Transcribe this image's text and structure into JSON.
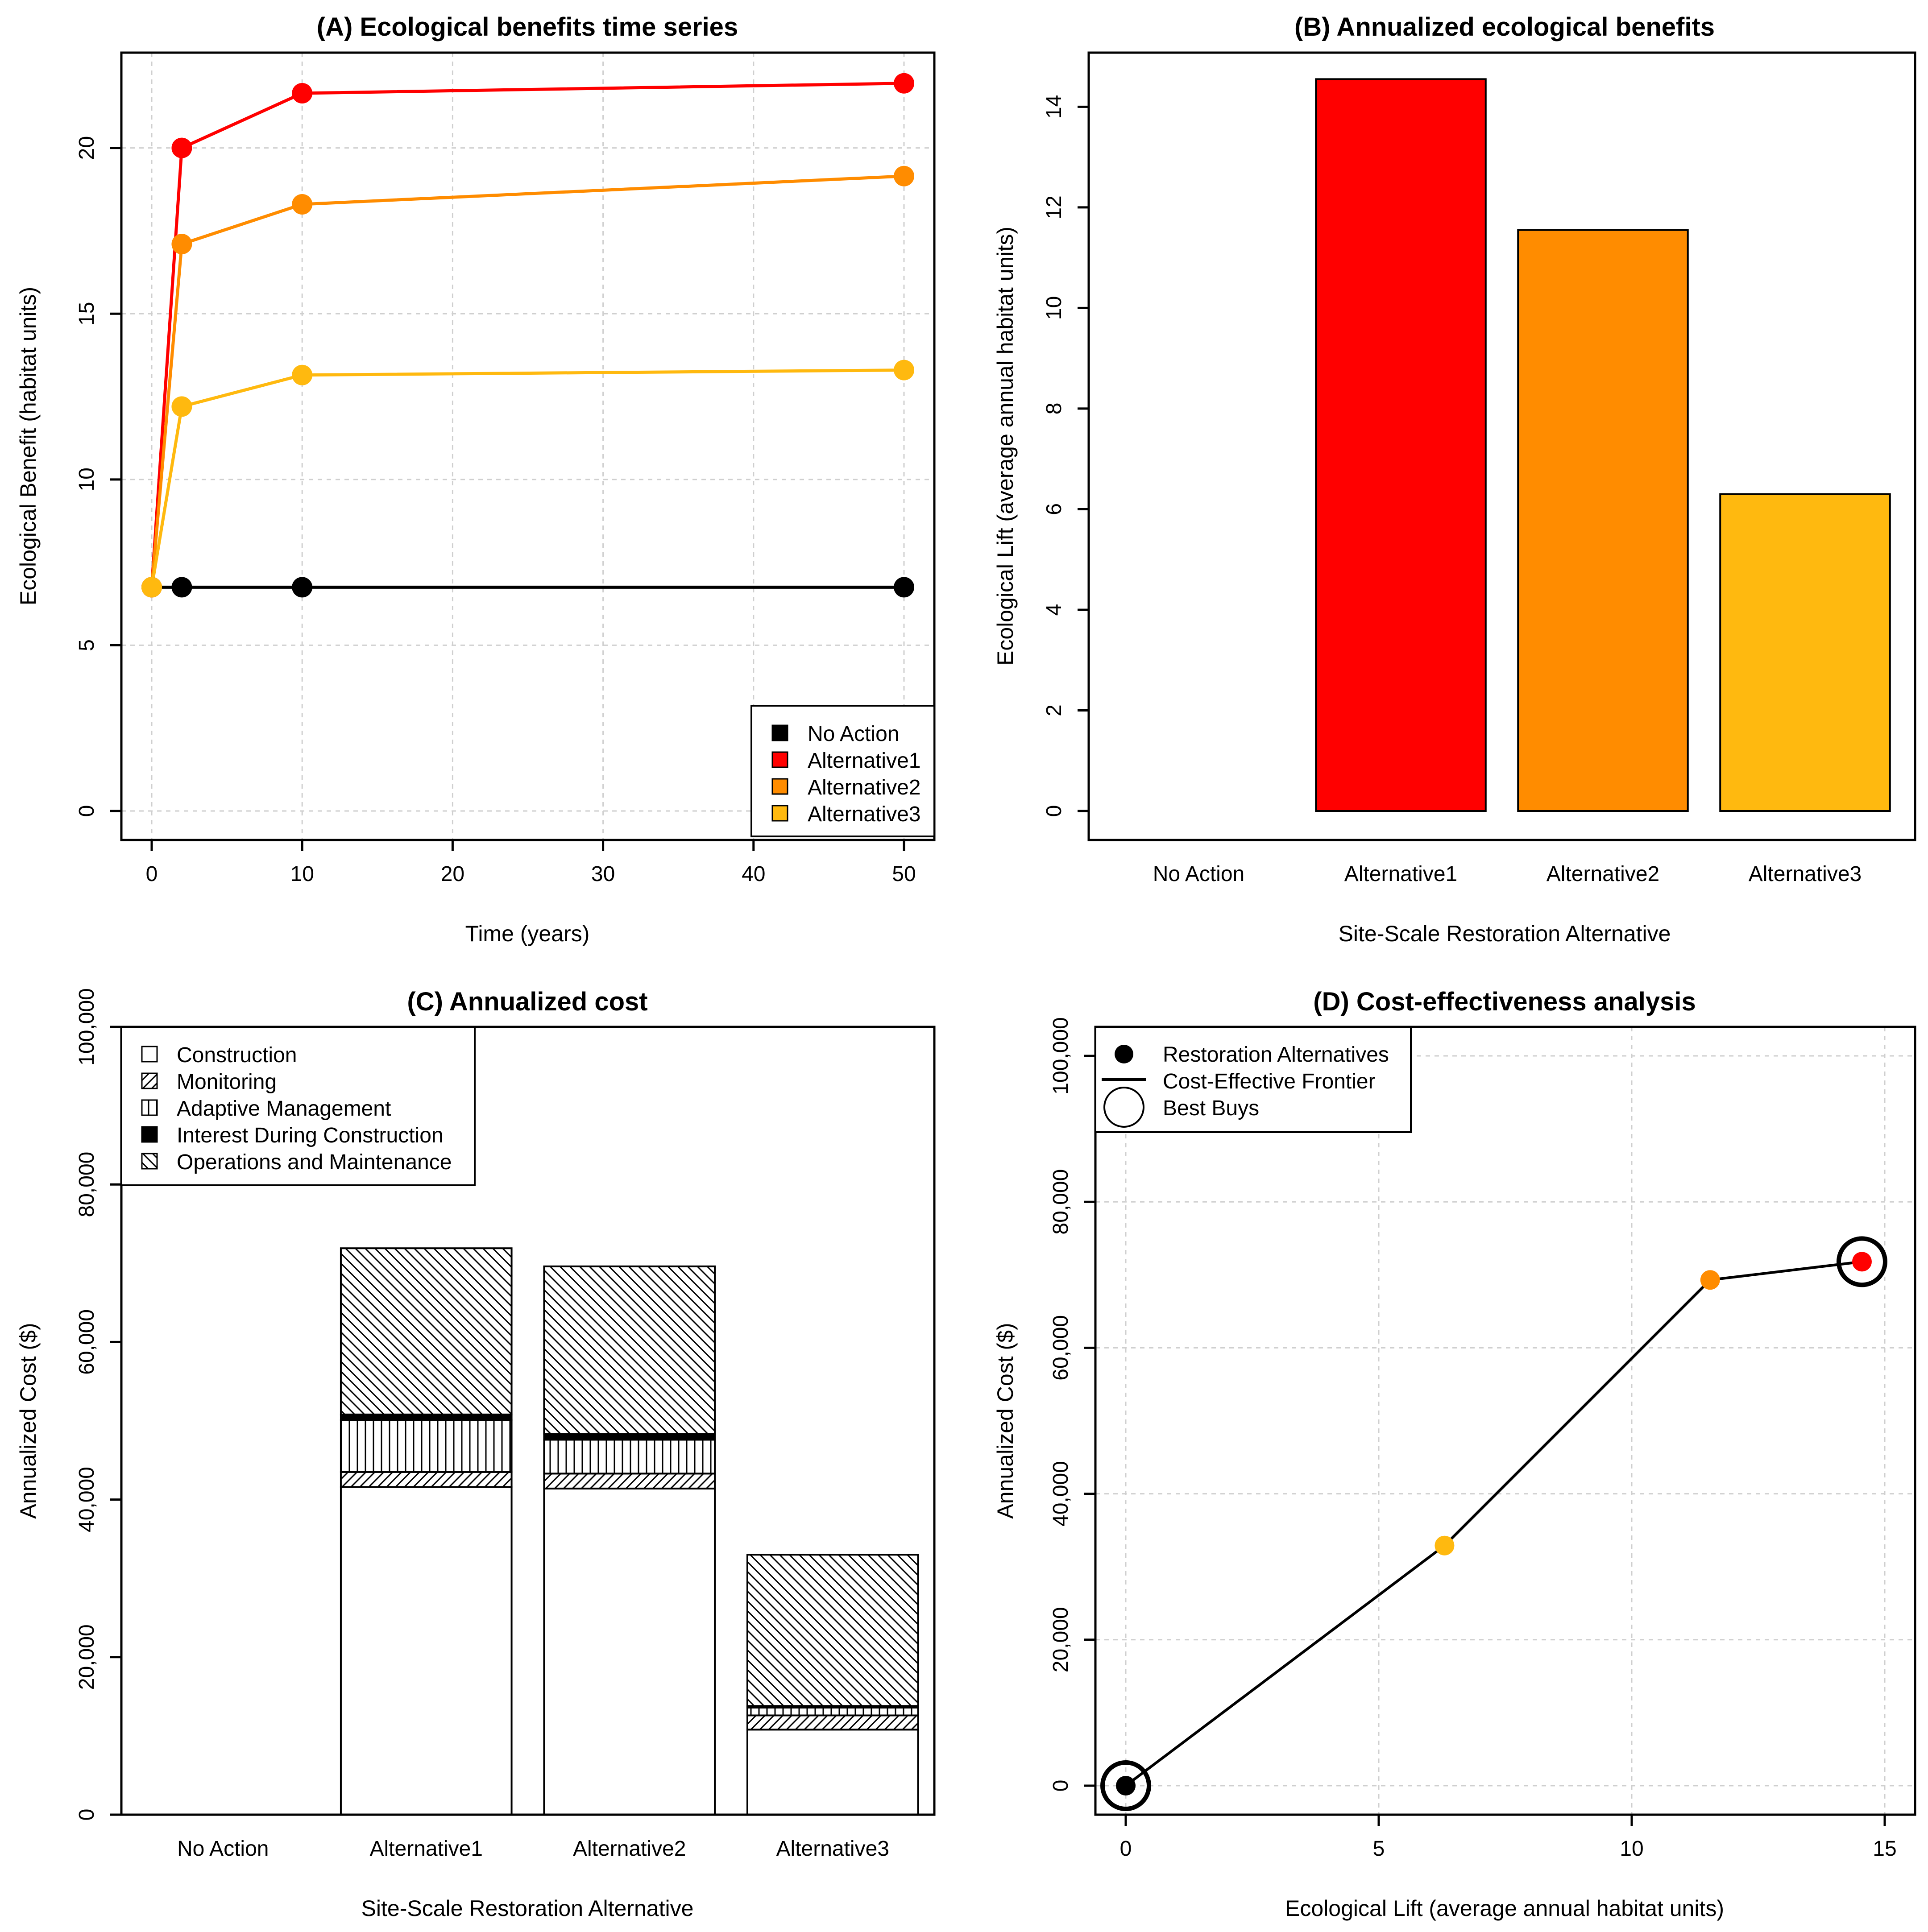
{
  "colors": {
    "no_action": "#000000",
    "alternative1": "#ff0000",
    "alternative2": "#ff8c00",
    "alternative3": "#ffb90f"
  },
  "chart_data": [
    {
      "id": "A",
      "type": "line",
      "title": "(A) Ecological benefits time series",
      "xlabel": "Time (years)",
      "ylabel": "Ecological Benefit (habitat units)",
      "xlim": [
        0,
        50
      ],
      "ylim": [
        0,
        22
      ],
      "xticks": [
        0,
        10,
        20,
        30,
        40,
        50
      ],
      "yticks": [
        0,
        5,
        10,
        15,
        20
      ],
      "grid": true,
      "legend_position": "bottom-right",
      "series": [
        {
          "name": "No Action",
          "color": "#000000",
          "x": [
            0,
            2,
            10,
            50
          ],
          "values": [
            6.75,
            6.75,
            6.75,
            6.75
          ]
        },
        {
          "name": "Alternative1",
          "color": "#ff0000",
          "x": [
            0,
            2,
            10,
            50
          ],
          "values": [
            6.75,
            20.0,
            21.65,
            21.95
          ]
        },
        {
          "name": "Alternative2",
          "color": "#ff8c00",
          "x": [
            0,
            2,
            10,
            50
          ],
          "values": [
            6.75,
            17.1,
            18.3,
            19.15
          ]
        },
        {
          "name": "Alternative3",
          "color": "#ffb90f",
          "x": [
            0,
            2,
            10,
            50
          ],
          "values": [
            6.75,
            12.2,
            13.15,
            13.3
          ]
        }
      ]
    },
    {
      "id": "B",
      "type": "bar",
      "title": "(B) Annualized ecological benefits",
      "xlabel": "Site-Scale Restoration Alternative",
      "ylabel": "Ecological Lift (average annual habitat units)",
      "ylim": [
        0,
        14.5
      ],
      "yticks": [
        0,
        2,
        4,
        6,
        8,
        10,
        12,
        14
      ],
      "categories": [
        "No Action",
        "Alternative1",
        "Alternative2",
        "Alternative3"
      ],
      "values": [
        0,
        14.55,
        11.55,
        6.3
      ],
      "colors": [
        "#000000",
        "#ff0000",
        "#ff8c00",
        "#ffb90f"
      ]
    },
    {
      "id": "C",
      "type": "bar",
      "stacked": true,
      "title": "(C) Annualized cost",
      "xlabel": "Site-Scale Restoration Alternative",
      "ylabel": "Annualized Cost ($)",
      "ylim": [
        0,
        100000
      ],
      "yticks": [
        0,
        20000,
        40000,
        60000,
        80000,
        100000
      ],
      "ytick_labels": [
        "0",
        "20,000",
        "40,000",
        "60,000",
        "80,000",
        "100,000"
      ],
      "legend_position": "top-left",
      "categories": [
        "No Action",
        "Alternative1",
        "Alternative2",
        "Alternative3"
      ],
      "series": [
        {
          "name": "Construction",
          "pattern": "blank",
          "values": [
            0,
            41600,
            41400,
            10800
          ]
        },
        {
          "name": "Monitoring",
          "pattern": "diag-right",
          "values": [
            0,
            1900,
            1900,
            1800
          ]
        },
        {
          "name": "Adaptive Management",
          "pattern": "vertical",
          "values": [
            0,
            6600,
            4300,
            1000
          ]
        },
        {
          "name": "Interest During Construction",
          "pattern": "solid",
          "values": [
            0,
            700,
            700,
            200
          ]
        },
        {
          "name": "Operations and Maintenance",
          "pattern": "diag-left",
          "values": [
            0,
            21100,
            21300,
            19200
          ]
        }
      ]
    },
    {
      "id": "D",
      "type": "scatter",
      "title": "(D) Cost-effectiveness analysis",
      "xlabel": "Ecological Lift (average annual habitat units)",
      "ylabel": "Annualized Cost ($)",
      "xlim": [
        0,
        15
      ],
      "ylim": [
        0,
        100000
      ],
      "xticks": [
        0,
        5,
        10,
        15
      ],
      "yticks": [
        0,
        20000,
        40000,
        60000,
        80000,
        100000
      ],
      "ytick_labels": [
        "0",
        "20,000",
        "40,000",
        "60,000",
        "80,000",
        "100,000"
      ],
      "grid": true,
      "legend_position": "top-left",
      "legend": [
        "Restoration Alternatives",
        "Cost-Effective Frontier",
        "Best Buys"
      ],
      "points": [
        {
          "name": "No Action",
          "x": 0,
          "y": 0,
          "color": "#000000",
          "best_buy": true
        },
        {
          "name": "Alternative3",
          "x": 6.3,
          "y": 32900,
          "color": "#ffb90f",
          "best_buy": false
        },
        {
          "name": "Alternative2",
          "x": 11.55,
          "y": 69300,
          "color": "#ff8c00",
          "best_buy": false
        },
        {
          "name": "Alternative1",
          "x": 14.55,
          "y": 71800,
          "color": "#ff0000",
          "best_buy": true
        }
      ],
      "frontier": [
        "No Action",
        "Alternative3",
        "Alternative2",
        "Alternative1"
      ]
    }
  ]
}
